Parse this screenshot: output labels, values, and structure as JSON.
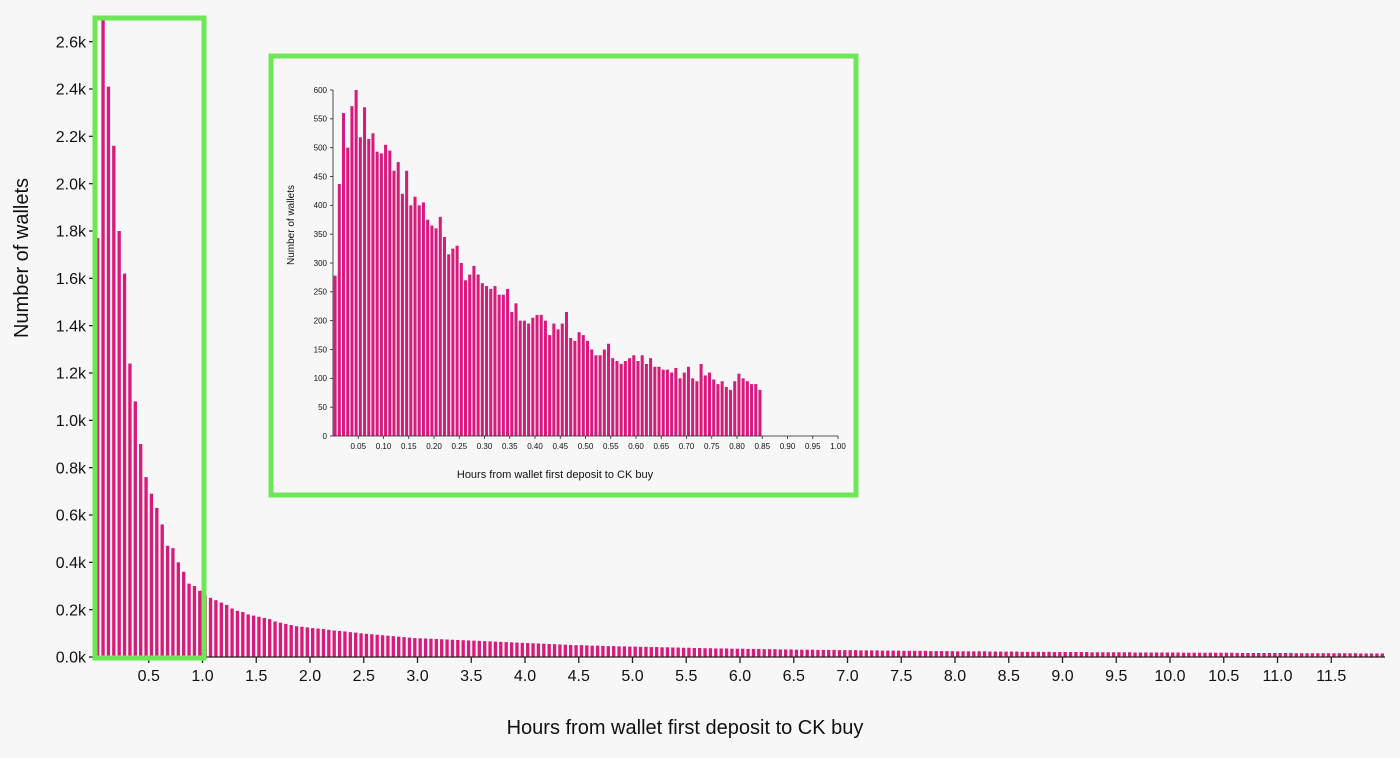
{
  "chart_data": [
    {
      "type": "bar",
      "title": "",
      "xlabel": "Hours from wallet first deposit to CK buy",
      "ylabel": "Number of wallets",
      "xlim": [
        0,
        12
      ],
      "ylim": [
        0,
        2700
      ],
      "bin_width": 0.05,
      "grid": false,
      "bar_color": "#d81b7a",
      "x_ticks": [
        0.5,
        1.0,
        1.5,
        2.0,
        2.5,
        3.0,
        3.5,
        4.0,
        4.5,
        5.0,
        5.5,
        6.0,
        6.5,
        7.0,
        7.5,
        8.0,
        8.5,
        9.0,
        9.5,
        10.0,
        10.5,
        11.0,
        11.5
      ],
      "x_tick_labels": [
        "0.5",
        "1.0",
        "1.5",
        "2.0",
        "2.5",
        "3.0",
        "3.5",
        "4.0",
        "4.5",
        "5.0",
        "5.5",
        "6.0",
        "6.5",
        "7.0",
        "7.5",
        "8.0",
        "8.5",
        "9.0",
        "9.5",
        "10.0",
        "10.5",
        "11.0",
        "11.5"
      ],
      "y_ticks": [
        0,
        200,
        400,
        600,
        800,
        1000,
        1200,
        1400,
        1600,
        1800,
        2000,
        2200,
        2400,
        2600
      ],
      "y_tick_labels": [
        "0.0k",
        "0.2k",
        "0.4k",
        "0.6k",
        "0.8k",
        "1.0k",
        "1.2k",
        "1.4k",
        "1.6k",
        "1.8k",
        "2.0k",
        "2.2k",
        "2.4k",
        "2.6k"
      ],
      "values": [
        1770,
        2700,
        2410,
        2160,
        1800,
        1620,
        1240,
        1080,
        900,
        760,
        690,
        630,
        560,
        470,
        460,
        400,
        360,
        310,
        300,
        280,
        260,
        250,
        240,
        230,
        220,
        205,
        195,
        190,
        180,
        175,
        170,
        165,
        160,
        150,
        145,
        140,
        135,
        130,
        128,
        125,
        122,
        120,
        118,
        115,
        112,
        110,
        108,
        105,
        103,
        100,
        98,
        96,
        94,
        92,
        90,
        88,
        86,
        84,
        82,
        80,
        79,
        78,
        77,
        76,
        75,
        74,
        73,
        72,
        71,
        70,
        69,
        68,
        67,
        66,
        65,
        64,
        63,
        62,
        61,
        60,
        59,
        58,
        57,
        56,
        55,
        54,
        53,
        52,
        51,
        50,
        50,
        49,
        48,
        48,
        47,
        46,
        46,
        45,
        45,
        44,
        44,
        43,
        43,
        42,
        42,
        41,
        41,
        40,
        40,
        39,
        39,
        38,
        38,
        37,
        37,
        36,
        36,
        36,
        35,
        35,
        35,
        34,
        34,
        34,
        33,
        33,
        33,
        32,
        32,
        32,
        31,
        31,
        31,
        31,
        30,
        30,
        30,
        30,
        29,
        29,
        29,
        29,
        28,
        28,
        28,
        28,
        27,
        27,
        27,
        27,
        26,
        26,
        26,
        26,
        26,
        25,
        25,
        25,
        25,
        25,
        24,
        24,
        24,
        24,
        24,
        24,
        23,
        23,
        23,
        23,
        23,
        23,
        22,
        22,
        22,
        22,
        22,
        22,
        21,
        21,
        21,
        21,
        21,
        21,
        21,
        20,
        20,
        20,
        20,
        20,
        20,
        20,
        20,
        19,
        19,
        19,
        19,
        19,
        19,
        19,
        19,
        19,
        18,
        18,
        18,
        18,
        18,
        18,
        18,
        18,
        18,
        18,
        17,
        17,
        17,
        17,
        17,
        17,
        17,
        17,
        17,
        17,
        17,
        16,
        16,
        16,
        16,
        16,
        16,
        16,
        16,
        16,
        16,
        16,
        16,
        15,
        15,
        15,
        15,
        15,
        15,
        15,
        15,
        15,
        15,
        15,
        15,
        15,
        15,
        14,
        14,
        14,
        14,
        14,
        14,
        14,
        14,
        14,
        14,
        14,
        14,
        14,
        14,
        14,
        14,
        13,
        13,
        13,
        13,
        13,
        13,
        13,
        13,
        13,
        13,
        13,
        13,
        13,
        13,
        13,
        13,
        13,
        13,
        13,
        12
      ]
    },
    {
      "type": "bar",
      "title": "",
      "xlabel": "Hours from wallet first deposit to CK buy",
      "ylabel": "Number of wallets",
      "xlim": [
        0,
        1.0
      ],
      "ylim": [
        0,
        600
      ],
      "bin_width": 0.00833,
      "grid": false,
      "bar_color": "#d81b7a",
      "x_ticks": [
        0.05,
        0.1,
        0.15,
        0.2,
        0.25,
        0.3,
        0.35,
        0.4,
        0.45,
        0.5,
        0.55,
        0.6,
        0.65,
        0.7,
        0.75,
        0.8,
        0.85,
        0.9,
        0.95,
        1.0
      ],
      "x_tick_labels": [
        "0.05",
        "0.10",
        "0.15",
        "0.20",
        "0.25",
        "0.30",
        "0.35",
        "0.40",
        "0.45",
        "0.50",
        "0.55",
        "0.60",
        "0.65",
        "0.70",
        "0.75",
        "0.80",
        "0.85",
        "0.90",
        "0.95",
        "1.00"
      ],
      "y_ticks": [
        0,
        50,
        100,
        150,
        200,
        250,
        300,
        350,
        400,
        450,
        500,
        550,
        600
      ],
      "y_tick_labels": [
        "0",
        "50",
        "100",
        "150",
        "200",
        "250",
        "300",
        "350",
        "400",
        "450",
        "500",
        "550",
        "600"
      ],
      "values": [
        278,
        437,
        560,
        500,
        572,
        603,
        518,
        570,
        515,
        525,
        493,
        490,
        505,
        495,
        460,
        475,
        420,
        460,
        400,
        415,
        400,
        405,
        375,
        365,
        360,
        380,
        345,
        315,
        325,
        330,
        300,
        270,
        280,
        295,
        280,
        265,
        260,
        255,
        260,
        245,
        245,
        255,
        215,
        230,
        200,
        200,
        195,
        205,
        210,
        210,
        200,
        175,
        195,
        185,
        195,
        215,
        170,
        165,
        180,
        175,
        165,
        150,
        140,
        140,
        150,
        160,
        135,
        130,
        125,
        130,
        135,
        140,
        130,
        140,
        125,
        135,
        120,
        120,
        115,
        115,
        110,
        118,
        100,
        110,
        120,
        100,
        95,
        125,
        105,
        110,
        98,
        90,
        95,
        85,
        80,
        95,
        108,
        100,
        95,
        90,
        90,
        80
      ]
    }
  ]
}
